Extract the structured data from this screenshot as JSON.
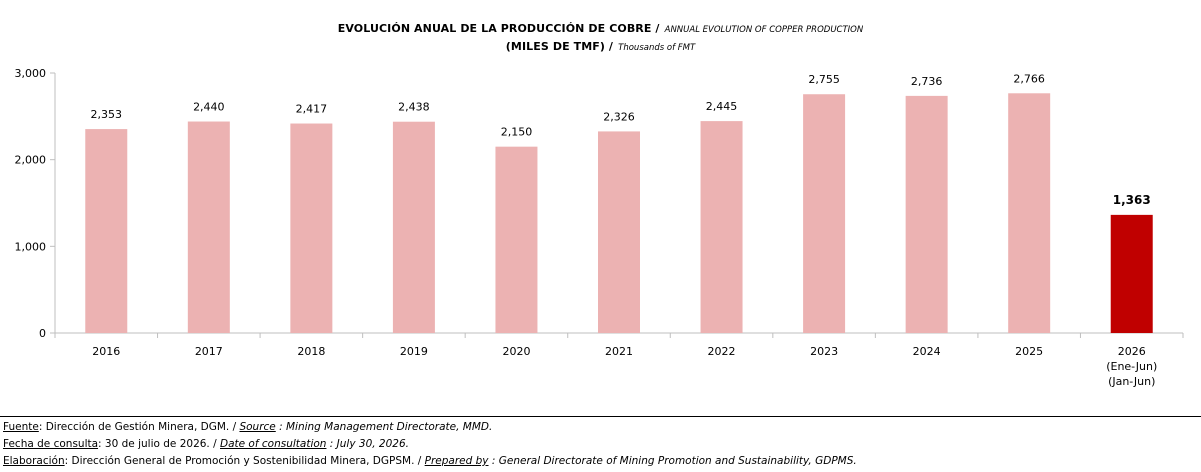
{
  "title": {
    "line1_main": "EVOLUCIÓN ANUAL DE LA PRODUCCIÓN DE COBRE /",
    "line1_sub": "ANNUAL EVOLUTION OF COPPER PRODUCTION",
    "line2_main": "(MILES DE TMF) /",
    "line2_sub": "Thousands of FMT"
  },
  "colors": {
    "bar": "#ECB2B2",
    "highlight": "#C00000",
    "axis": "#BFBFBF"
  },
  "chart_data": {
    "type": "bar",
    "categories": [
      "2016",
      "2017",
      "2018",
      "2019",
      "2020",
      "2021",
      "2022",
      "2023",
      "2024",
      "2025",
      "2026"
    ],
    "category_notes": {
      "2026": [
        "(Ene-Jun)",
        "(Jan-Jun)"
      ]
    },
    "values": [
      2353,
      2440,
      2417,
      2438,
      2150,
      2326,
      2445,
      2755,
      2736,
      2766,
      1363
    ],
    "value_labels": [
      "2,353",
      "2,440",
      "2,417",
      "2,438",
      "2,150",
      "2,326",
      "2,445",
      "2,755",
      "2,736",
      "2,766",
      "1,363"
    ],
    "highlight_category": "2026",
    "ylim": [
      0,
      3000
    ],
    "yticks": [
      0,
      1000,
      2000,
      3000
    ],
    "ytick_labels": [
      "0",
      "1,000",
      "2,000",
      "3,000"
    ],
    "grid": false,
    "legend": "none"
  },
  "footer": {
    "source_label": "Fuente",
    "source_text": ":  Dirección de Gestión Minera, DGM. / ",
    "source_en_label": "Source",
    "source_en_text": " : Mining Management Directorate, MMD.",
    "date_label": "Fecha de consulta",
    "date_text": ": 30 de julio de 2026. / ",
    "date_en_label": "Date of consultation",
    "date_en_text": " : July 30, 2026.",
    "prep_label": "Elaboración",
    "prep_text": ": Dirección General de Promoción y Sostenibilidad Minera, DGPSM. / ",
    "prep_en_label": "Prepared by",
    "prep_en_text": " : General Directorate of Mining Promotion and Sustainability, GDPMS."
  }
}
